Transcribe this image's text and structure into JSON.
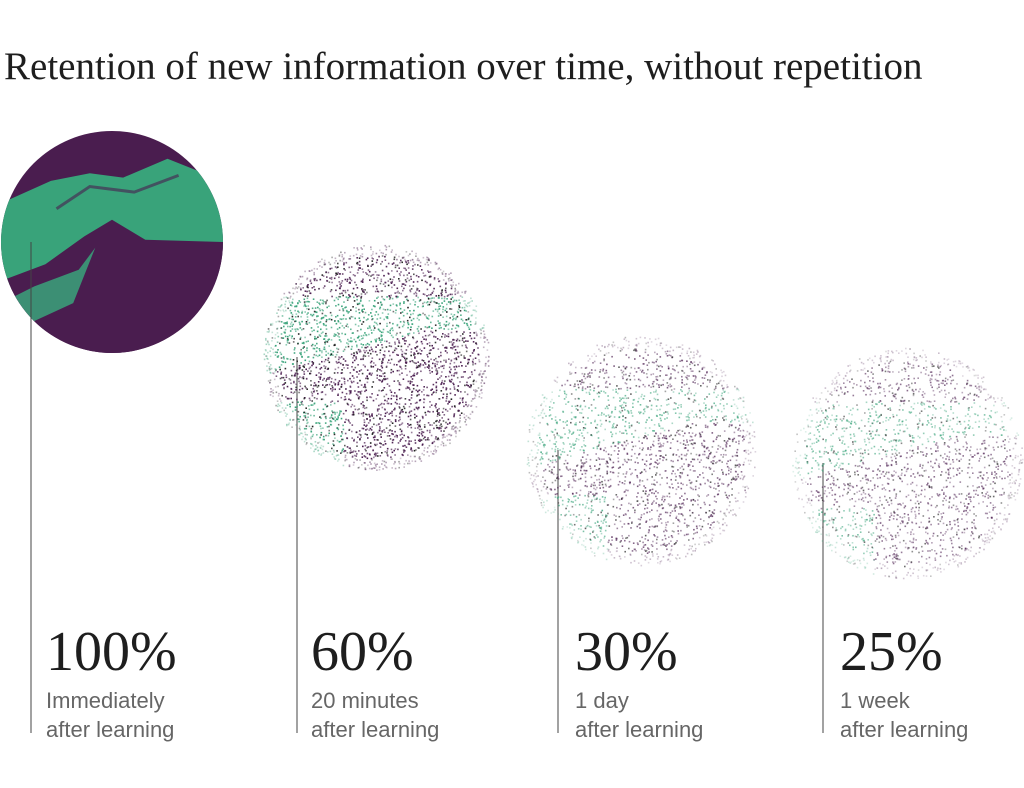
{
  "title": "Retention of new information over time, without repetition",
  "colors": {
    "purple": "#4a1d4f",
    "green": "#39a37a",
    "text": "#1e1e1e",
    "subtext": "#666666",
    "leader": "#444444"
  },
  "chart_data": {
    "type": "bar",
    "title": "Retention of new information over time, without repetition",
    "unit": "%",
    "categories": [
      "Immediately after learning",
      "20 minutes after learning",
      "1 day after learning",
      "1 week after learning"
    ],
    "values": [
      100,
      60,
      30,
      25
    ],
    "points": [
      {
        "value_label": "100%",
        "line1": "Immediately",
        "line2": "after learning"
      },
      {
        "value_label": "60%",
        "line1": "20 minutes",
        "line2": "after learning"
      },
      {
        "value_label": "30%",
        "line1": "1 day",
        "line2": "after learning"
      },
      {
        "value_label": "25%",
        "line1": "1 week",
        "line2": "after learning"
      }
    ]
  }
}
